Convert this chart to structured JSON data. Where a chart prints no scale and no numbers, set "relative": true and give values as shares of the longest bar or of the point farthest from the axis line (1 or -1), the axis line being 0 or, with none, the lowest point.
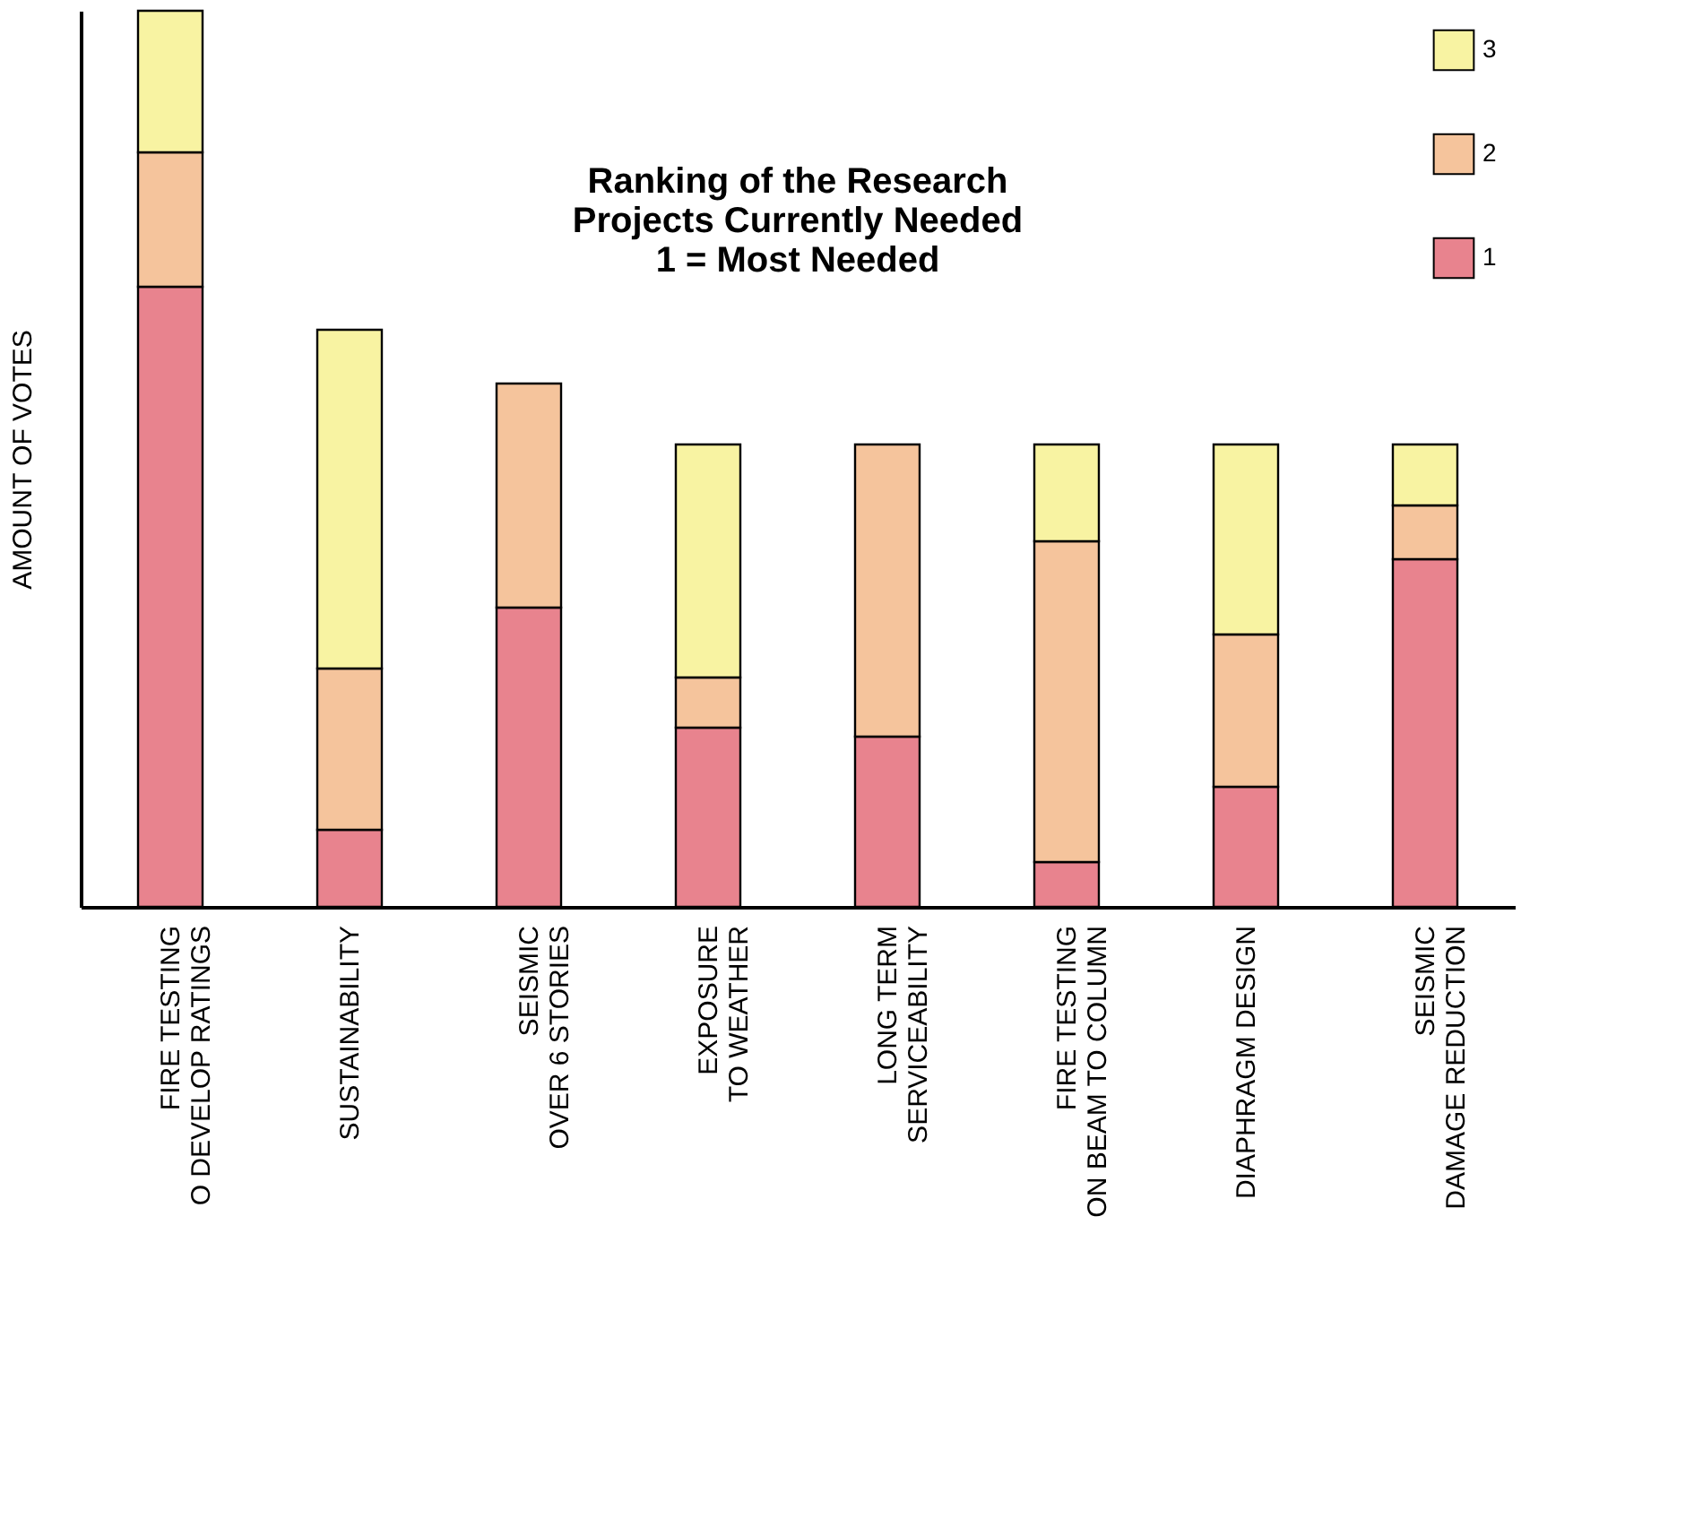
{
  "chart_data": {
    "type": "bar",
    "title": "Ranking of the Research\nProjects Currently Needed\n1 = Most Needed",
    "ylabel": "AMOUNT OF VOTES",
    "categories": [
      "FIRE TESTING\nO DEVELOP RATINGS",
      "SUSTAINABILITY",
      "SEISMIC\nOVER 6 STORIES",
      "EXPOSURE\nTO WEATHER",
      "LONG TERM\nSERVICEABILITY",
      "FIRE TESTING\nON BEAM TO COLUMN",
      "DIAPHRAGM DESIGN",
      "SEISMIC\nDAMAGE REDUCTION"
    ],
    "stacked": true,
    "relative": true,
    "legend": "top right",
    "grid": false,
    "series": [
      {
        "name": "1",
        "color": "#e8838e",
        "values": [
          0.692,
          0.086,
          0.334,
          0.2,
          0.19,
          0.05,
          0.134,
          0.388
        ]
      },
      {
        "name": "2",
        "color": "#f5c49c",
        "values": [
          0.15,
          0.18,
          0.25,
          0.056,
          0.326,
          0.358,
          0.17,
          0.06
        ]
      },
      {
        "name": "3",
        "color": "#f8f3a2",
        "values": [
          0.158,
          0.378,
          null,
          0.26,
          null,
          0.108,
          0.212,
          0.068
        ]
      }
    ]
  }
}
